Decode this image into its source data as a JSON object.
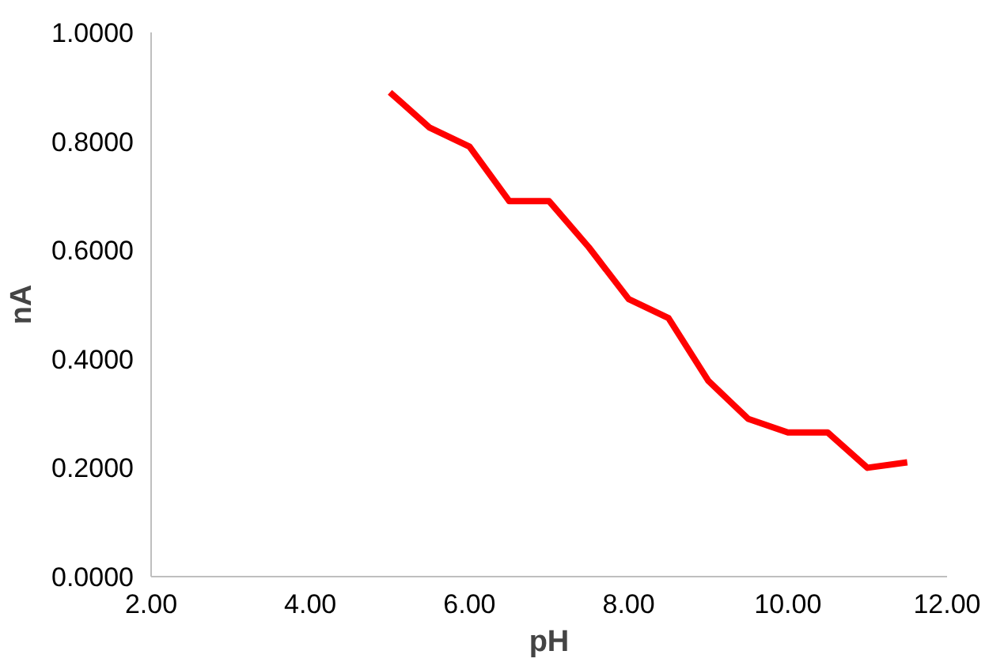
{
  "chart_data": {
    "type": "line",
    "xlabel": "pH",
    "ylabel": "nA",
    "x": [
      5.0,
      5.5,
      6.0,
      6.5,
      7.0,
      7.5,
      8.0,
      8.5,
      9.0,
      9.5,
      10.0,
      10.5,
      11.0,
      11.5
    ],
    "series": [
      {
        "color": "#ff0000",
        "values": [
          0.89,
          0.825,
          0.79,
          0.69,
          0.69,
          0.605,
          0.51,
          0.475,
          0.36,
          0.29,
          0.265,
          0.265,
          0.2,
          0.21
        ]
      }
    ],
    "xlim": [
      2,
      12
    ],
    "ylim": [
      0,
      1
    ],
    "xticks": [
      {
        "value": 2,
        "label": "2.00"
      },
      {
        "value": 4,
        "label": "4.00"
      },
      {
        "value": 6,
        "label": "6.00"
      },
      {
        "value": 8,
        "label": "8.00"
      },
      {
        "value": 10,
        "label": "10.00"
      },
      {
        "value": 12,
        "label": "12.00"
      }
    ],
    "yticks": [
      {
        "value": 0,
        "label": "0.0000"
      },
      {
        "value": 0.2,
        "label": "0.2000"
      },
      {
        "value": 0.4,
        "label": "0.4000"
      },
      {
        "value": 0.6,
        "label": "0.6000"
      },
      {
        "value": 0.8,
        "label": "0.8000"
      },
      {
        "value": 1,
        "label": "1.0000"
      }
    ],
    "grid": false,
    "marker": "none",
    "line_style": "solid"
  }
}
